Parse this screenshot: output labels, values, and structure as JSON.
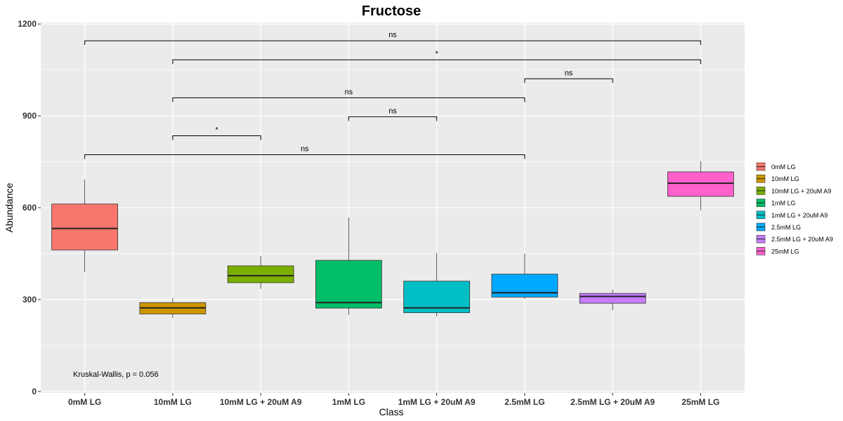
{
  "chart_data": {
    "type": "boxplot",
    "title": "Fructose",
    "xlabel": "Class",
    "ylabel": "Abundance",
    "ylim": [
      -5,
      1205
    ],
    "yticks": [
      0,
      300,
      600,
      900,
      1200
    ],
    "grid": true,
    "legend_position": "right",
    "categories": [
      "0mM LG",
      "10mM LG",
      "10mM LG + 20uM A9",
      "1mM LG",
      "1mM LG + 20uM A9",
      "2.5mM LG",
      "2.5mM LG + 20uM A9",
      "25mM LG"
    ],
    "colors": [
      "#F8766D",
      "#CD9600",
      "#7CAE00",
      "#00BE67",
      "#00BFC4",
      "#00A9FF",
      "#C77CFF",
      "#FF61CC"
    ],
    "boxes": [
      {
        "min": 390,
        "q1": 462,
        "median": 532,
        "q3": 612,
        "max": 692
      },
      {
        "min": 240,
        "q1": 253,
        "median": 273,
        "q3": 290,
        "max": 305
      },
      {
        "min": 335,
        "q1": 355,
        "median": 378,
        "q3": 410,
        "max": 442
      },
      {
        "min": 250,
        "q1": 272,
        "median": 290,
        "q3": 428,
        "max": 568
      },
      {
        "min": 245,
        "q1": 257,
        "median": 273,
        "q3": 360,
        "max": 452
      },
      {
        "min": 302,
        "q1": 308,
        "median": 322,
        "q3": 383,
        "max": 450
      },
      {
        "min": 265,
        "q1": 288,
        "median": 310,
        "q3": 320,
        "max": 333
      },
      {
        "min": 592,
        "q1": 637,
        "median": 680,
        "q3": 717,
        "max": 752
      }
    ],
    "comparisons": [
      {
        "from": 0,
        "to": 7,
        "y": 1145,
        "label": "ns"
      },
      {
        "from": 1,
        "to": 7,
        "y": 1083,
        "label": "*"
      },
      {
        "from": 5,
        "to": 6,
        "y": 1021,
        "label": "ns"
      },
      {
        "from": 1,
        "to": 5,
        "y": 959,
        "label": "ns"
      },
      {
        "from": 3,
        "to": 4,
        "y": 897,
        "label": "ns"
      },
      {
        "from": 1,
        "to": 2,
        "y": 835,
        "label": "*"
      },
      {
        "from": 0,
        "to": 5,
        "y": 773,
        "label": "ns"
      }
    ],
    "annotation": "Kruskal-Wallis, p = 0.056"
  }
}
